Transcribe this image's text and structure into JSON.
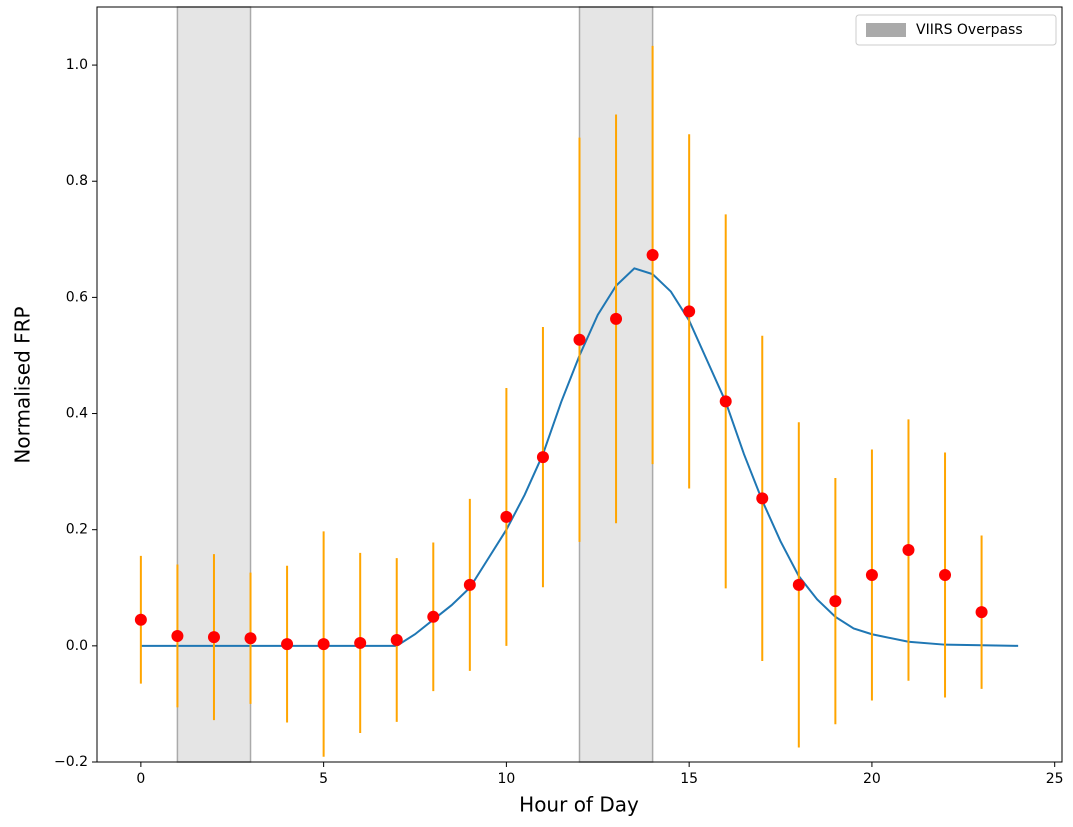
{
  "chart_data": {
    "type": "errorbar",
    "x_label": "Hour of Day",
    "y_label": "Normalised FRP",
    "x": [
      0,
      1,
      2,
      3,
      4,
      5,
      6,
      7,
      8,
      9,
      10,
      11,
      12,
      13,
      14,
      15,
      16,
      17,
      18,
      19,
      20,
      21,
      22,
      23
    ],
    "values": [
      0.045,
      0.017,
      0.015,
      0.013,
      0.003,
      0.003,
      0.005,
      0.01,
      0.05,
      0.105,
      0.222,
      0.325,
      0.527,
      0.563,
      0.673,
      0.576,
      0.421,
      0.254,
      0.105,
      0.077,
      0.122,
      0.165,
      0.122,
      0.058
    ],
    "errors": [
      0.11,
      0.123,
      0.143,
      0.113,
      0.135,
      0.194,
      0.155,
      0.141,
      0.128,
      0.148,
      0.222,
      0.224,
      0.348,
      0.352,
      0.36,
      0.305,
      0.322,
      0.28,
      0.28,
      0.212,
      0.216,
      0.225,
      0.211,
      0.132
    ],
    "color": "#ff0000",
    "error_color": "#ffa500",
    "fit": {
      "color": "#1f77b4",
      "x": [
        0,
        1,
        2,
        3,
        4,
        5,
        6,
        7,
        7.5,
        8,
        8.5,
        9,
        9.5,
        10,
        10.5,
        11,
        11.5,
        12,
        12.5,
        13,
        13.5,
        14,
        14.5,
        15,
        15.5,
        16,
        16.5,
        17,
        17.5,
        18,
        18.5,
        19,
        19.5,
        20,
        21,
        22,
        23,
        24
      ],
      "values": [
        0,
        0,
        0,
        0,
        0,
        0,
        0,
        0,
        0.02,
        0.045,
        0.07,
        0.1,
        0.15,
        0.2,
        0.26,
        0.33,
        0.42,
        0.5,
        0.57,
        0.62,
        0.65,
        0.64,
        0.61,
        0.56,
        0.49,
        0.42,
        0.33,
        0.25,
        0.18,
        0.12,
        0.08,
        0.05,
        0.03,
        0.02,
        0.007,
        0.002,
        0.001,
        0
      ]
    },
    "spans": [
      {
        "start": 1,
        "end": 3
      },
      {
        "start": 12,
        "end": 14
      }
    ],
    "span_label": "VIIRS Overpass",
    "span_color": "#e5e5e5",
    "legend_color": "#aaaaaa",
    "legend": "upper right",
    "xlim": [
      -1.2,
      25.2
    ],
    "ylim": [
      -0.2,
      1.1
    ],
    "xticks": [
      0,
      5,
      10,
      15,
      20,
      25
    ],
    "yticks": [
      {
        "value": -0.2,
        "label": "−0.2"
      },
      {
        "value": 0,
        "label": "0.0"
      },
      0.2,
      0.4,
      0.6,
      0.8,
      {
        "value": 1,
        "label": "1.0"
      }
    ]
  }
}
